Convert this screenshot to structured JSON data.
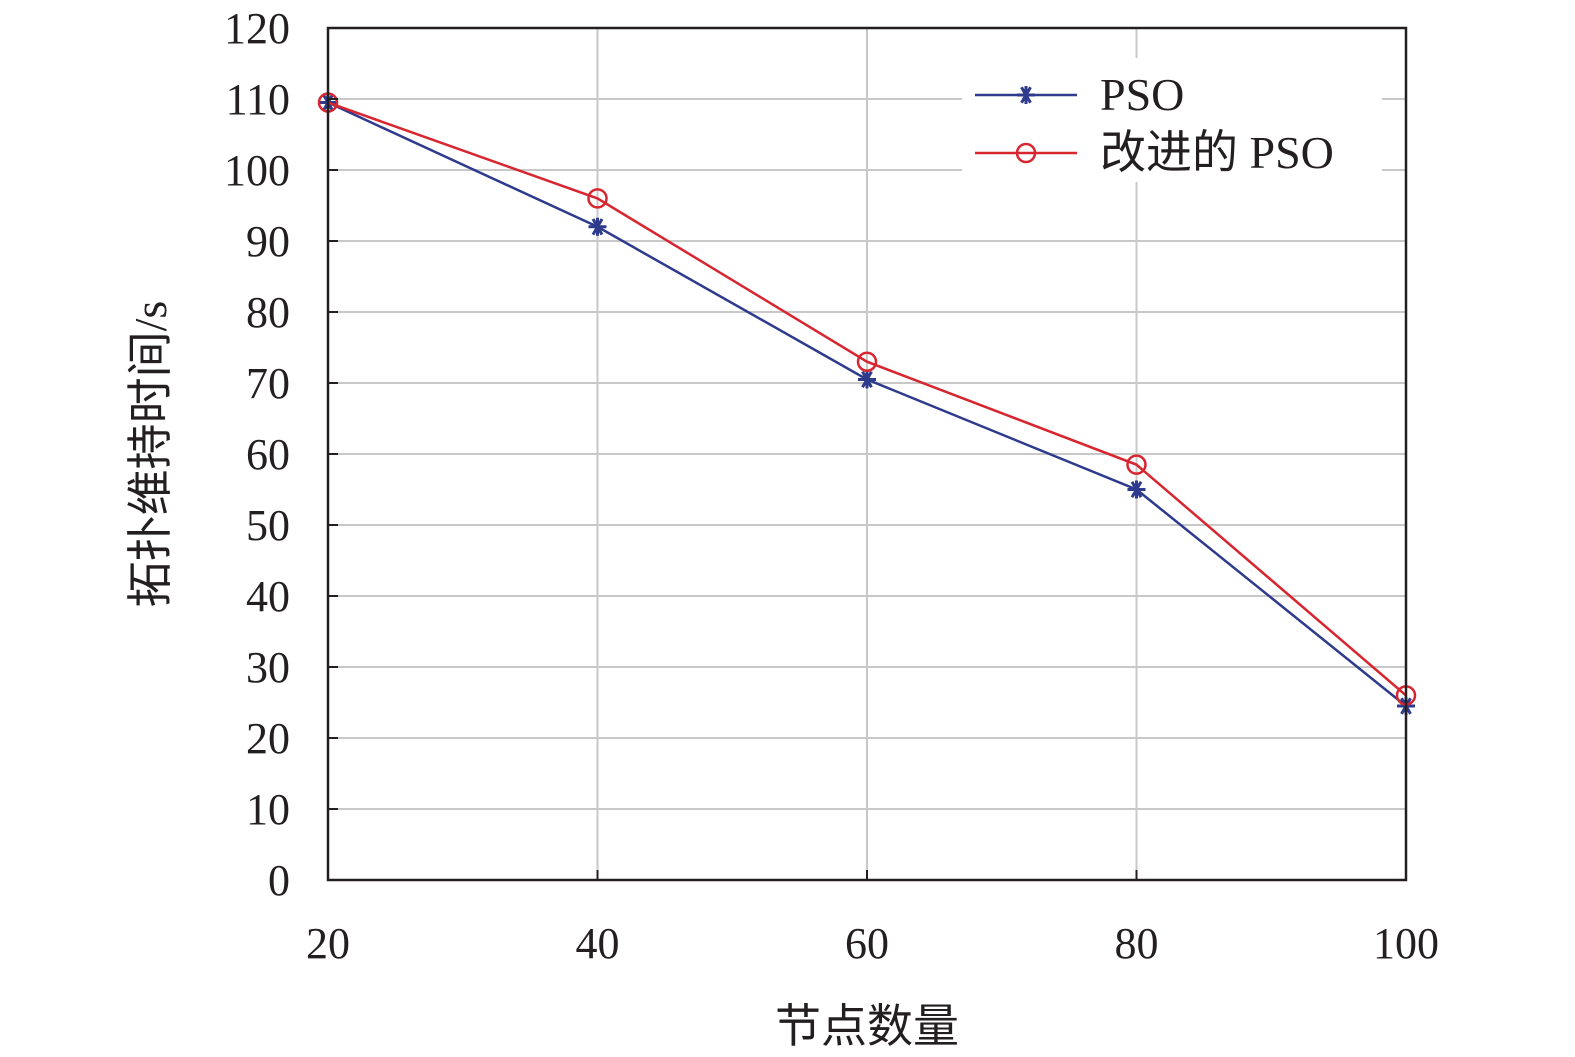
{
  "chart_data": {
    "type": "line",
    "title": "",
    "xlabel": "节点数量",
    "ylabel": "拓扑维持时间/s",
    "x": [
      20,
      40,
      60,
      80,
      100
    ],
    "xlim": [
      20,
      100
    ],
    "ylim": [
      0,
      120
    ],
    "xticks": [
      "20",
      "40",
      "60",
      "80",
      "100"
    ],
    "yticks": [
      "0",
      "10",
      "20",
      "30",
      "40",
      "50",
      "60",
      "70",
      "80",
      "90",
      "100",
      "110",
      "120"
    ],
    "grid": true,
    "legend_position": "top-right",
    "series": [
      {
        "name": "PSO",
        "values": [
          109.5,
          92,
          70.5,
          55,
          24.5
        ],
        "color": "#2e3a8c",
        "marker": "asterisk"
      },
      {
        "name": "改进的 PSO",
        "values": [
          109.5,
          96,
          73,
          58.5,
          26
        ],
        "color": "#d7262f",
        "marker": "circle"
      }
    ],
    "grid_color": "#c8c8c8",
    "axis_color": "#231f20"
  }
}
